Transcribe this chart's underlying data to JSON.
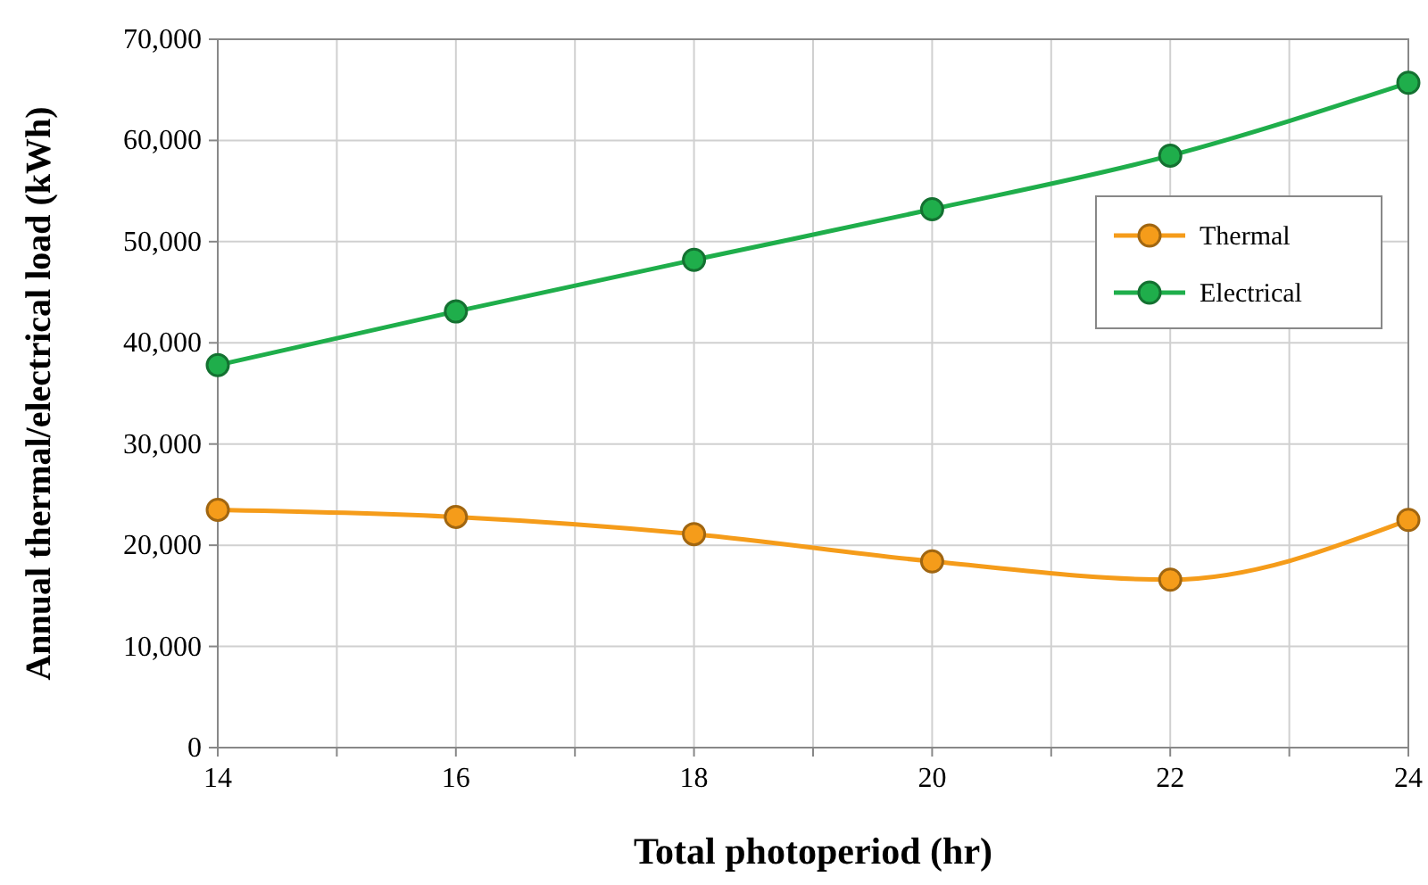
{
  "chart_data": {
    "type": "line",
    "xlabel": "Total photoperiod (hr)",
    "ylabel": "Annual thermal/electrical load (kWh)",
    "x": [
      14,
      16,
      18,
      20,
      22,
      24
    ],
    "series": [
      {
        "name": "Thermal",
        "color": "#f59c1a",
        "values": [
          23500,
          22800,
          21100,
          18400,
          16600,
          22500
        ]
      },
      {
        "name": "Electrical",
        "color": "#1fae4b",
        "values": [
          37800,
          43100,
          48200,
          53200,
          58500,
          65700
        ]
      }
    ],
    "xlim": [
      14,
      24
    ],
    "xticks": [
      14,
      {
        "value": 15,
        "label": null
      },
      16,
      {
        "value": 17,
        "label": null
      },
      18,
      {
        "value": 19,
        "label": null
      },
      20,
      {
        "value": 21,
        "label": null
      },
      22,
      {
        "value": 23,
        "label": null
      },
      24
    ],
    "ylim": [
      0,
      70000
    ],
    "yticks": [
      {
        "value": 0,
        "label": "0"
      },
      {
        "value": 10000,
        "label": "10,000"
      },
      {
        "value": 20000,
        "label": "20,000"
      },
      {
        "value": 30000,
        "label": "30,000"
      },
      {
        "value": 40000,
        "label": "40,000"
      },
      {
        "value": 50000,
        "label": "50,000"
      },
      {
        "value": 60000,
        "label": "60,000"
      },
      {
        "value": 70000,
        "label": "70,000"
      }
    ],
    "grid": true,
    "legend": "right",
    "marker": "circle",
    "line_style": "solid"
  }
}
